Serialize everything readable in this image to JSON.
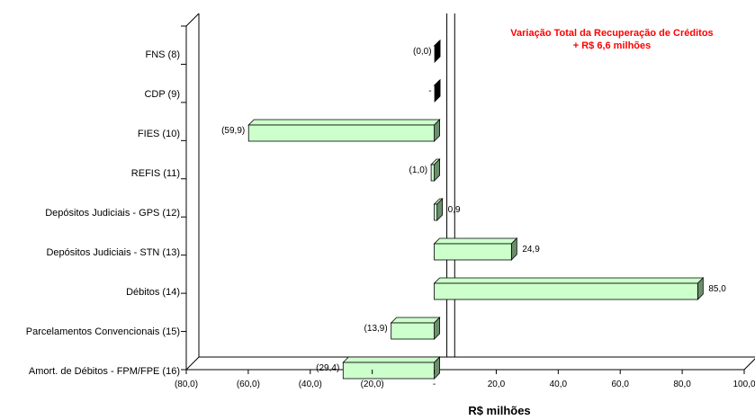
{
  "chart_data": {
    "type": "bar",
    "orientation": "horizontal",
    "categories": [
      "FNS (8)",
      "CDP (9)",
      "FIES (10)",
      "REFIS (11)",
      "Depósitos Judiciais - GPS (12)",
      "Depósitos Judiciais - STN (13)",
      "Débitos  (14)",
      "Parcelamentos Convencionais (15)",
      "Amort. de Débitos - FPM/FPE (16)"
    ],
    "values": [
      0.0,
      0.0,
      -59.9,
      -1.0,
      0.9,
      24.9,
      85.0,
      -13.9,
      -29.4
    ],
    "data_labels": [
      "(0,0)",
      "-",
      "(59,9)",
      "(1,0)",
      "0,9",
      "24,9",
      "85,0",
      "(13,9)",
      "(29,4)"
    ],
    "xlim": [
      -80,
      100
    ],
    "xticks": [
      "(80,0)",
      "(60,0)",
      "(40,0)",
      "(20,0)",
      "-",
      "20,0",
      "40,0",
      "60,0",
      "80,0",
      "100,0"
    ],
    "xlabel": "R$ milhões",
    "annotation": [
      "Variação Total da Recuperação de Créditos",
      "+ R$ 6,6 milhões"
    ],
    "bar_color": "#ccffcc",
    "bar_side_color": "#6b8e6b",
    "total_line_value": 6.6
  }
}
